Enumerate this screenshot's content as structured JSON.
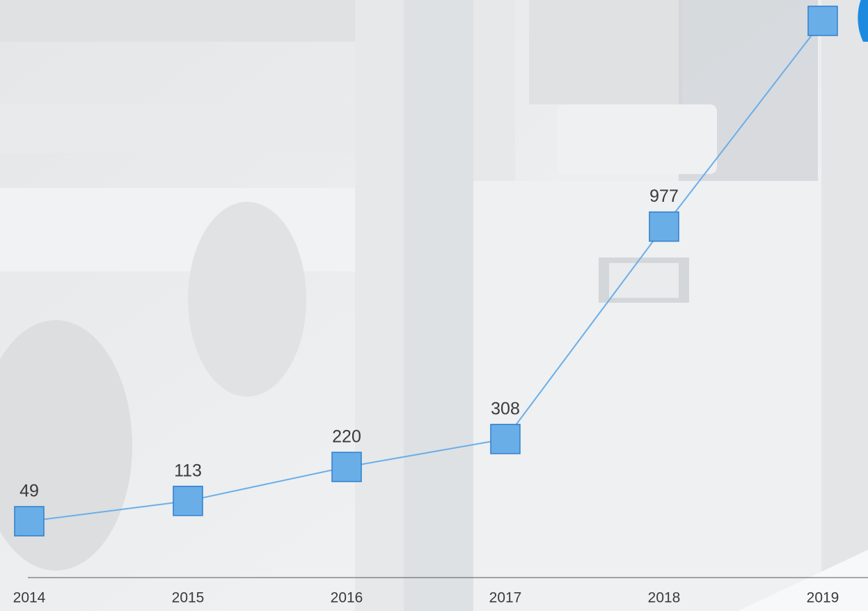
{
  "chart_data": {
    "type": "line",
    "categories": [
      "2014",
      "2015",
      "2016",
      "2017",
      "2018",
      "2019"
    ],
    "series": [
      {
        "name": null,
        "color": "#6aaee8",
        "values": [
          49,
          113,
          220,
          308,
          977,
          1625
        ],
        "value_labels": [
          "49",
          "113",
          "220",
          "308",
          "977",
          null
        ]
      }
    ]
  }
}
